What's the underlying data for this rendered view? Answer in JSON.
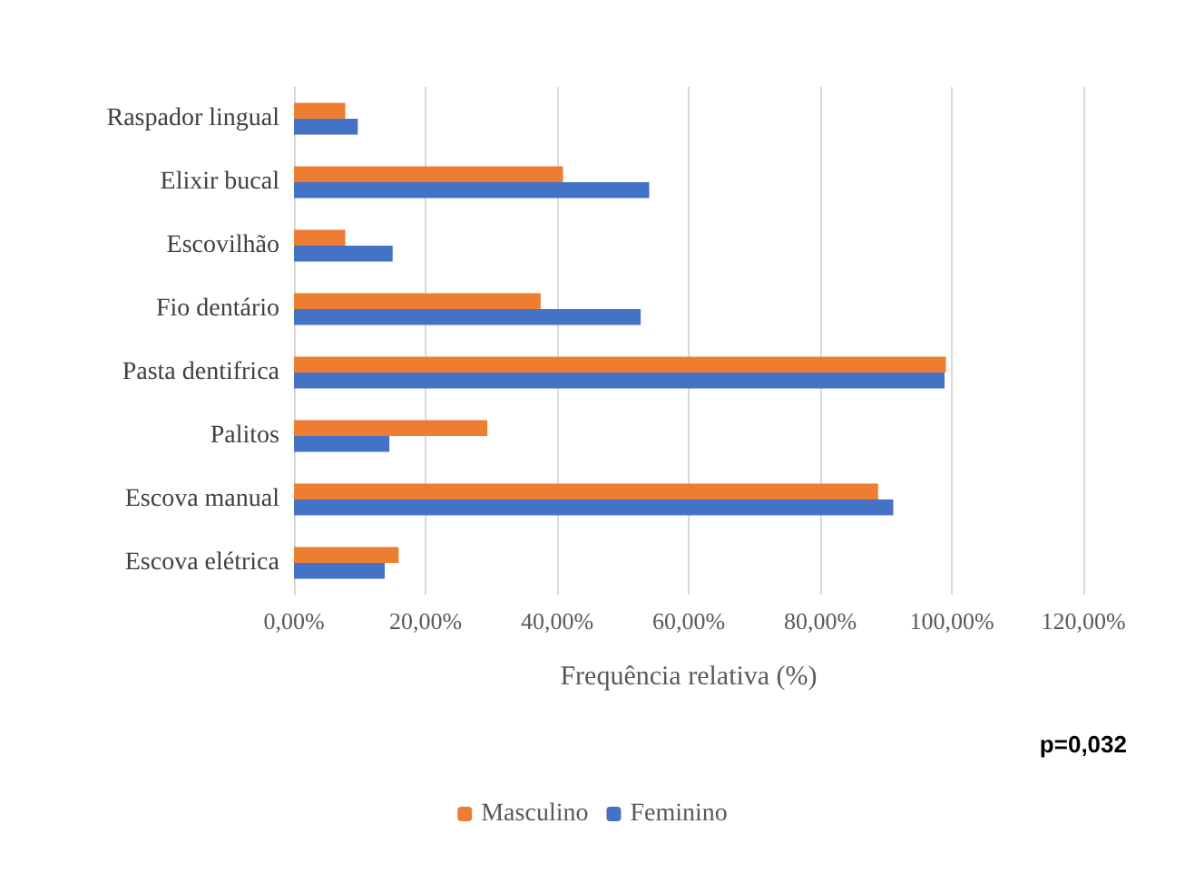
{
  "chart_data": {
    "type": "bar",
    "orientation": "horizontal",
    "xlabel": "Frequência relativa (%)",
    "categories": [
      "Raspador lingual",
      "Elixir bucal",
      "Escovilhão",
      "Fio dentário",
      "Pasta dentifrica",
      "Palitos",
      "Escova manual",
      "Escova elétrica"
    ],
    "series": [
      {
        "name": "Masculino",
        "color": "#ed7d31",
        "values": [
          7.8,
          40.9,
          7.8,
          37.5,
          99.1,
          29.4,
          88.8,
          15.9
        ]
      },
      {
        "name": "Feminino",
        "color": "#4472c4",
        "values": [
          9.7,
          54.0,
          15.0,
          52.7,
          98.9,
          14.5,
          91.1,
          13.8
        ]
      }
    ],
    "xlim": [
      0,
      120
    ],
    "xticks": [
      {
        "value": 0,
        "label": "0,00%"
      },
      {
        "value": 20,
        "label": "20,00%"
      },
      {
        "value": 40,
        "label": "40,00%"
      },
      {
        "value": 60,
        "label": "60,00%"
      },
      {
        "value": 80,
        "label": "80,00%"
      },
      {
        "value": 100,
        "label": "100,00%"
      },
      {
        "value": 120,
        "label": "120,00%"
      }
    ],
    "grid": "x",
    "legend": "bottom",
    "annotations": [
      "p=0,032"
    ]
  }
}
